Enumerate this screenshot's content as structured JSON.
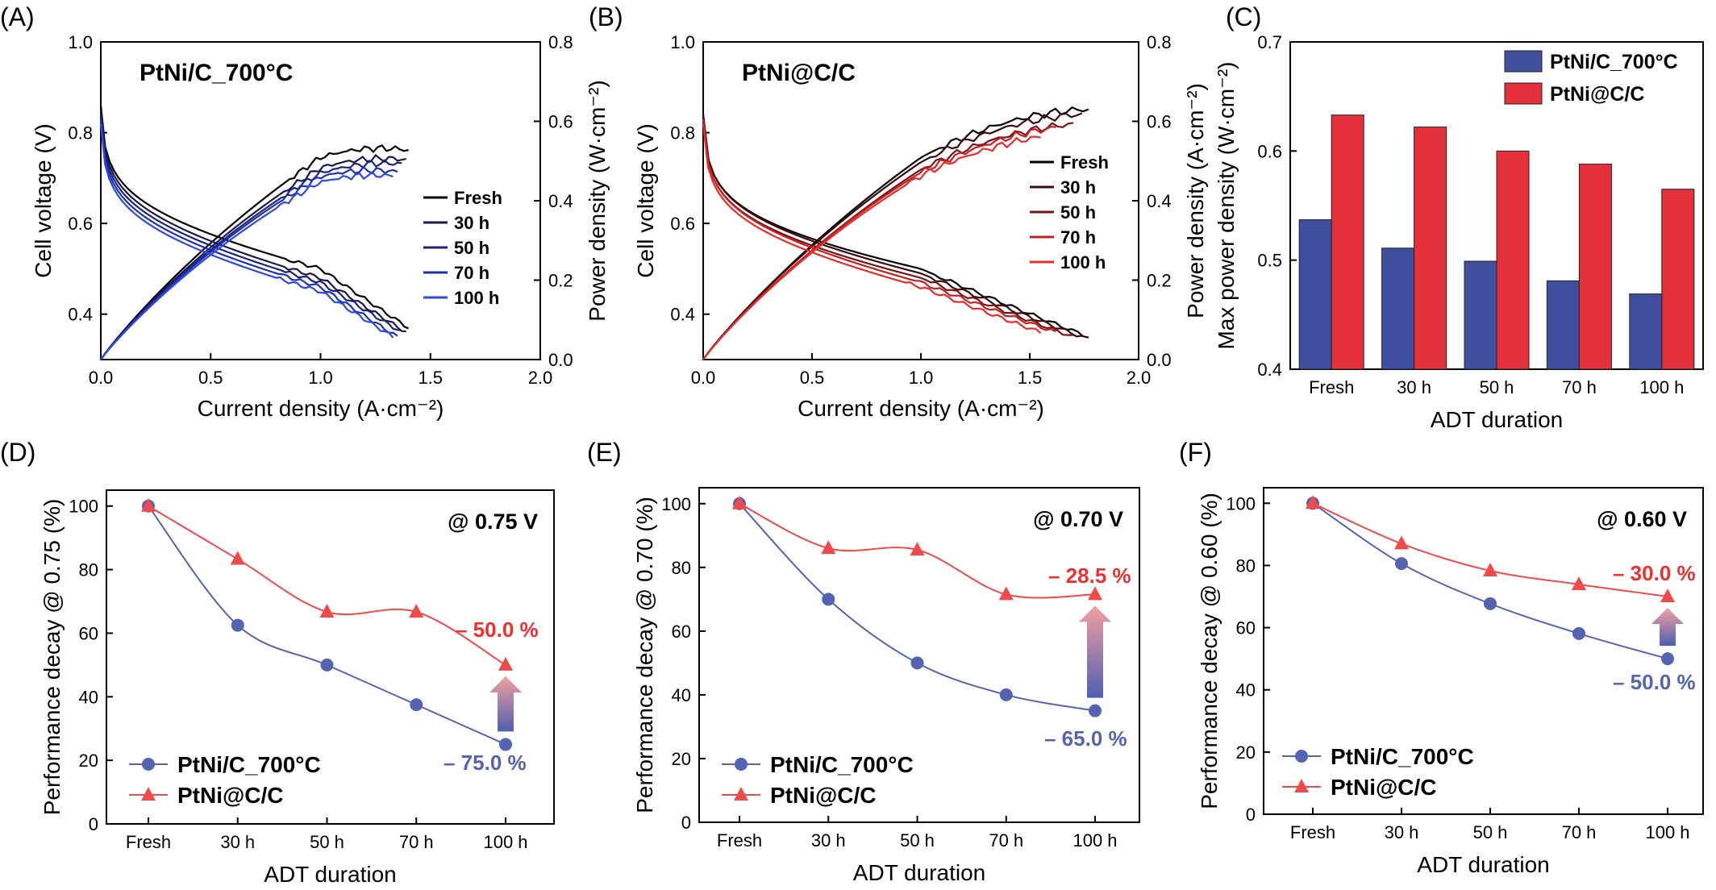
{
  "figure": {
    "panels": [
      {
        "id": "A",
        "letter": "(A)",
        "type": "line",
        "title": "PtNi/C_700°C",
        "xlabel": "Current density (A·cm⁻²)",
        "ylabel_left": "Cell voltage (V)",
        "ylabel_right": "Power density (W·cm⁻²)",
        "xlim": [
          0,
          2.0
        ],
        "ylim_left": [
          0.3,
          1.0
        ],
        "ylim_right": [
          0,
          0.8
        ],
        "xticks": [
          "0.0",
          "0.5",
          "1.0",
          "1.5",
          "2.0"
        ],
        "yticks_left": [
          "0.4",
          "0.6",
          "0.8",
          "1.0"
        ],
        "yticks_right": [
          "0.0",
          "0.2",
          "0.4",
          "0.6",
          "0.8"
        ],
        "legend": [
          "Fresh",
          "30 h",
          "50 h",
          "70 h",
          "100 h"
        ],
        "colors": [
          "#000000",
          "#1a1a4d",
          "#1a237e",
          "#1f2fb8",
          "#2d4be0"
        ],
        "max_current": [
          1.4,
          1.39,
          1.37,
          1.35,
          1.33
        ],
        "ocv": [
          0.86,
          0.85,
          0.84,
          0.83,
          0.82
        ],
        "v_at_1_0": [
          0.5,
          0.48,
          0.47,
          0.46,
          0.45
        ],
        "v_at_max": [
          0.37,
          0.36,
          0.36,
          0.35,
          0.35
        ],
        "peak_power": [
          0.537,
          0.511,
          0.499,
          0.481,
          0.469
        ]
      },
      {
        "id": "B",
        "letter": "(B)",
        "type": "line",
        "title": "PtNi@C/C",
        "xlabel": "Current density (A·cm⁻²)",
        "ylabel_left": "Cell voltage (V)",
        "ylabel_right": "Power density (A·cm⁻²)",
        "xlim": [
          0,
          2.0
        ],
        "ylim_left": [
          0.3,
          1.0
        ],
        "ylim_right": [
          0,
          0.8
        ],
        "xticks": [
          "0.0",
          "0.5",
          "1.0",
          "1.5",
          "2.0"
        ],
        "yticks_left": [
          "0.4",
          "0.6",
          "0.8",
          "1.0"
        ],
        "yticks_right": [
          "0.0",
          "0.2",
          "0.4",
          "0.6",
          "0.8"
        ],
        "legend": [
          "Fresh",
          "30 h",
          "50 h",
          "70 h",
          "100 h"
        ],
        "colors": [
          "#000000",
          "#3d0b0b",
          "#7a1414",
          "#c22121",
          "#ee2b2b"
        ],
        "max_current": [
          1.77,
          1.74,
          1.7,
          1.62,
          1.55
        ],
        "ocv": [
          0.84,
          0.84,
          0.83,
          0.83,
          0.82
        ],
        "v_at_1_0": [
          0.5,
          0.49,
          0.48,
          0.47,
          0.46
        ],
        "v_at_max": [
          0.35,
          0.35,
          0.35,
          0.36,
          0.36
        ],
        "peak_power": [
          0.633,
          0.622,
          0.6,
          0.588,
          0.565
        ]
      },
      {
        "id": "C",
        "letter": "(C)",
        "type": "bar",
        "xlabel": "ADT duration",
        "ylabel": "Max power density (W·cm⁻²)",
        "ylim": [
          0.4,
          0.7
        ],
        "yticks": [
          "0.4",
          "0.5",
          "0.6",
          "0.7"
        ],
        "categories": [
          "Fresh",
          "30 h",
          "50 h",
          "70 h",
          "100 h"
        ],
        "series": [
          {
            "name": "PtNi/C_700°C",
            "color": "#3f4f9e",
            "values": [
              0.537,
              0.511,
              0.499,
              0.481,
              0.469
            ]
          },
          {
            "name": "PtNi@C/C",
            "color": "#e3303a",
            "values": [
              0.633,
              0.622,
              0.6,
              0.588,
              0.565
            ]
          }
        ],
        "legend_position": "top-right"
      },
      {
        "id": "D",
        "letter": "(D)",
        "type": "line",
        "xlabel": "ADT duration",
        "ylabel": "Performance decay @ 0.75 (%)",
        "voltage_label": "@ 0.75 V",
        "ylim": [
          0,
          105
        ],
        "yticks": [
          "0",
          "20",
          "40",
          "60",
          "80",
          "100"
        ],
        "categories": [
          "Fresh",
          "30 h",
          "50 h",
          "70 h",
          "100 h"
        ],
        "series": [
          {
            "name": "PtNi/C_700°C",
            "color": "#5563b3",
            "marker": "circle",
            "values": [
              100,
              62.5,
              50,
              37.5,
              25
            ]
          },
          {
            "name": "PtNi@C/C",
            "color": "#f04a4a",
            "marker": "triangle",
            "values": [
              100,
              83.3,
              66.7,
              66.7,
              50
            ]
          }
        ],
        "annotations": {
          "red": "– 50.0 %",
          "blue": "– 75.0 %"
        }
      },
      {
        "id": "E",
        "letter": "(E)",
        "type": "line",
        "xlabel": "ADT duration",
        "ylabel": "Performance decay @ 0.70 (%)",
        "voltage_label": "@ 0.70 V",
        "ylim": [
          0,
          105
        ],
        "yticks": [
          "0",
          "20",
          "40",
          "60",
          "80",
          "100"
        ],
        "categories": [
          "Fresh",
          "30 h",
          "50 h",
          "70 h",
          "100 h"
        ],
        "series": [
          {
            "name": "PtNi/C_700°C",
            "color": "#5563b3",
            "marker": "circle",
            "values": [
              100,
              70,
              50,
              40,
              35
            ]
          },
          {
            "name": "PtNi@C/C",
            "color": "#f04a4a",
            "marker": "triangle",
            "values": [
              100,
              86,
              85.5,
              71.5,
              71.5
            ]
          }
        ],
        "annotations": {
          "red": "– 28.5 %",
          "blue": "– 65.0 %"
        }
      },
      {
        "id": "F",
        "letter": "(F)",
        "type": "line",
        "xlabel": "ADT duration",
        "ylabel": "Performance decay @ 0.60 (%)",
        "voltage_label": "@ 0.60 V",
        "ylim": [
          0,
          105
        ],
        "yticks": [
          "0",
          "20",
          "40",
          "60",
          "80",
          "100"
        ],
        "categories": [
          "Fresh",
          "30 h",
          "50 h",
          "70 h",
          "100 h"
        ],
        "series": [
          {
            "name": "PtNi/C_700°C",
            "color": "#5563b3",
            "marker": "circle",
            "values": [
              100,
              80.6,
              67.7,
              58.1,
              50
            ]
          },
          {
            "name": "PtNi@C/C",
            "color": "#f04a4a",
            "marker": "triangle",
            "values": [
              100,
              87,
              78.3,
              73.9,
              70
            ]
          }
        ],
        "annotations": {
          "red": "– 30.0 %",
          "blue": "– 50.0 %"
        }
      }
    ]
  }
}
